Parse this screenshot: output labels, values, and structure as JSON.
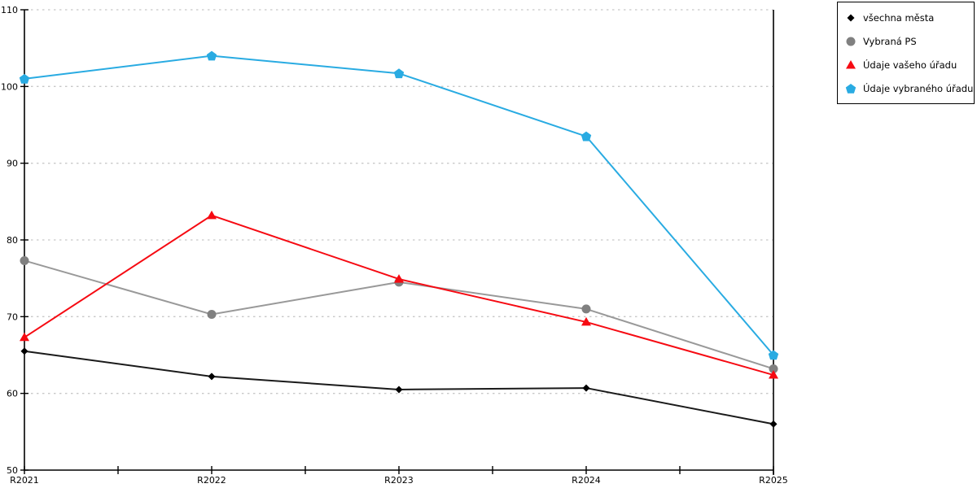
{
  "chart_data": {
    "type": "line",
    "title": "",
    "xlabel": "",
    "ylabel": "",
    "categories": [
      "R2021",
      "R2022",
      "R2023",
      "R2024",
      "R2025"
    ],
    "series": [
      {
        "name": "všechna města",
        "marker": "diamond",
        "color": "#000000",
        "line_color": "#1a1a1a",
        "values": [
          65.5,
          62.2,
          60.5,
          60.7,
          56.0
        ]
      },
      {
        "name": "Vybraná PS",
        "marker": "circle",
        "color": "#808080",
        "line_color": "#999999",
        "values": [
          77.3,
          70.3,
          74.5,
          71.0,
          63.2
        ]
      },
      {
        "name": "Údaje vašeho úřadu",
        "marker": "triangle-up",
        "color": "#f60a12",
        "line_color": "#f60a12",
        "values": [
          67.3,
          83.2,
          74.9,
          69.3,
          62.4
        ]
      },
      {
        "name": "Údaje vybraného úřadu",
        "marker": "pentagon",
        "color": "#29abe2",
        "line_color": "#29abe2",
        "values": [
          101.0,
          104.0,
          101.7,
          93.5,
          65.0
        ]
      }
    ],
    "ylim": [
      50,
      110
    ],
    "yticks": [
      50,
      60,
      70,
      80,
      90,
      100,
      110
    ],
    "grid": "horizontal-dotted",
    "grid_color": "#c8c8c8",
    "axis_color": "#000000",
    "legend_position": "top-right"
  }
}
